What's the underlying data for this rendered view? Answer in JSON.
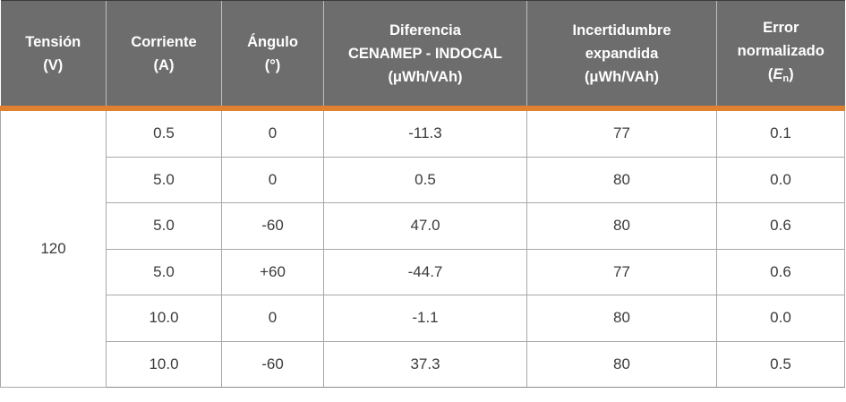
{
  "theme": {
    "accent_color": "#e0812f",
    "header_bg_color": "#6d6d6d",
    "header_text_color": "#ffffff",
    "cell_border_color": "#a8a8a8"
  },
  "table": {
    "columns": [
      {
        "lines": [
          "Tensión",
          "(V)"
        ]
      },
      {
        "lines": [
          "Corriente",
          "(A)"
        ]
      },
      {
        "lines": [
          "Ángulo",
          "(°)"
        ]
      },
      {
        "lines": [
          "Diferencia",
          "CENAMEP - INDOCAL",
          "(μWh/VAh)"
        ]
      },
      {
        "lines": [
          "Incertidumbre",
          "expandida",
          "(μWh/VAh)"
        ]
      },
      {
        "lines": [
          "Error",
          "normalizado"
        ],
        "symbol": {
          "open": "(",
          "base": "E",
          "sub": "n",
          "close": ")"
        }
      }
    ],
    "tension_value": "120",
    "rows": [
      {
        "corriente": "0.5",
        "angulo": "0",
        "diferencia": "-11.3",
        "incertidumbre": "77",
        "error": "0.1"
      },
      {
        "corriente": "5.0",
        "angulo": "0",
        "diferencia": "0.5",
        "incertidumbre": "80",
        "error": "0.0"
      },
      {
        "corriente": "5.0",
        "angulo": "-60",
        "diferencia": "47.0",
        "incertidumbre": "80",
        "error": "0.6"
      },
      {
        "corriente": "5.0",
        "angulo": "+60",
        "diferencia": "-44.7",
        "incertidumbre": "77",
        "error": "0.6"
      },
      {
        "corriente": "10.0",
        "angulo": "0",
        "diferencia": "-1.1",
        "incertidumbre": "80",
        "error": "0.0"
      },
      {
        "corriente": "10.0",
        "angulo": "-60",
        "diferencia": "37.3",
        "incertidumbre": "80",
        "error": "0.5"
      }
    ]
  }
}
